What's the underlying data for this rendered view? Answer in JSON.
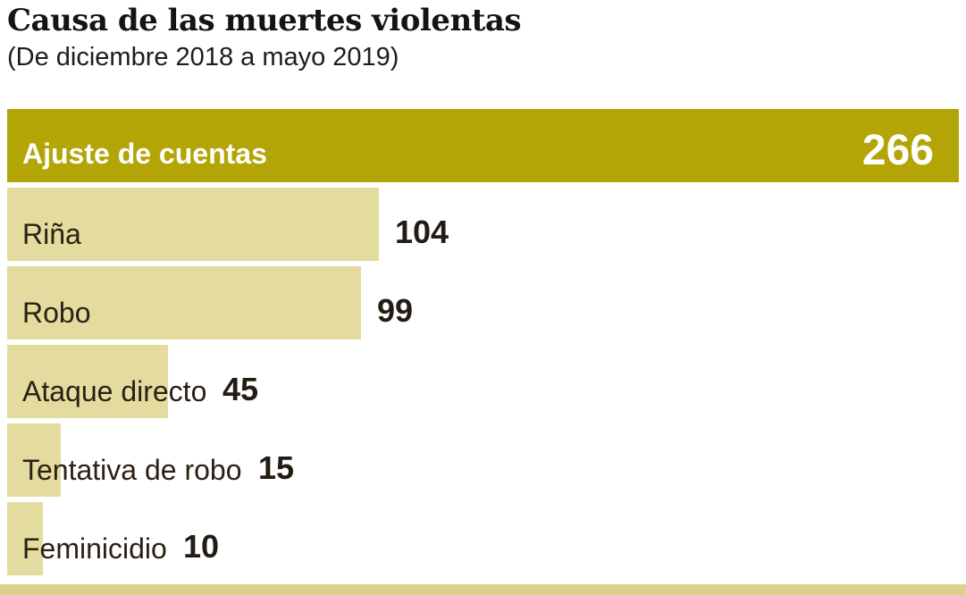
{
  "title": "Causa de las muertes violentas",
  "subtitle": "(De diciembre 2018 a mayo 2019)",
  "chart_data": {
    "type": "bar",
    "orientation": "horizontal",
    "title": "Causa de las muertes violentas",
    "subtitle": "(De diciembre 2018 a mayo 2019)",
    "categories": [
      "Ajuste de cuentas",
      "Riña",
      "Robo",
      "Ataque directo",
      "Tentativa de robo",
      "Feminicidio"
    ],
    "values": [
      266,
      104,
      99,
      45,
      15,
      10
    ],
    "xlim": [
      0,
      266
    ],
    "value_labels": [
      "266",
      "104",
      "99",
      "45",
      "15",
      "10"
    ],
    "legend": "none",
    "grid": false,
    "colors": {
      "highlight_bar": "#b3a506",
      "bar": "#e3dc9e",
      "highlight_text": "#ffffff",
      "label_text": "#2b2014",
      "value_text": "#231c12"
    }
  },
  "rows": [
    {
      "label": "Ajuste de cuentas",
      "value": 266,
      "display": "266",
      "highlight": true
    },
    {
      "label": "Riña",
      "value": 104,
      "display": "104",
      "highlight": false
    },
    {
      "label": "Robo",
      "value": 99,
      "display": "99",
      "highlight": false
    },
    {
      "label": "Ataque directo",
      "value": 45,
      "display": "45",
      "highlight": false
    },
    {
      "label": "Tentativa de robo",
      "value": 15,
      "display": "15",
      "highlight": false
    },
    {
      "label": "Feminicidio",
      "value": 10,
      "display": "10",
      "highlight": false
    }
  ]
}
